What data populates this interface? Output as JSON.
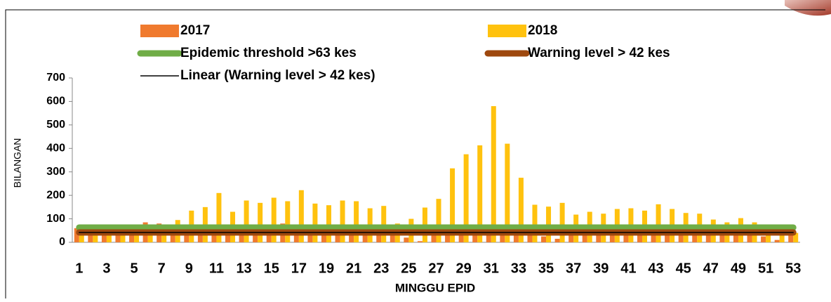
{
  "chart_data": {
    "type": "bar",
    "categories": [
      1,
      null,
      3,
      null,
      5,
      null,
      7,
      null,
      9,
      null,
      11,
      null,
      13,
      null,
      15,
      null,
      17,
      null,
      19,
      null,
      21,
      null,
      23,
      null,
      25,
      null,
      27,
      null,
      29,
      null,
      31,
      null,
      33,
      null,
      35,
      null,
      37,
      null,
      39,
      null,
      41,
      null,
      43,
      null,
      45,
      null,
      47,
      null,
      49,
      null,
      51,
      null,
      53
    ],
    "series": [
      {
        "name": "2017",
        "type": "bar",
        "color": "#f07a2e",
        "values": [
          60,
          75,
          55,
          50,
          55,
          85,
          80,
          60,
          55,
          55,
          55,
          50,
          55,
          55,
          60,
          80,
          55,
          55,
          50,
          50,
          55,
          50,
          50,
          40,
          20,
          5,
          45,
          50,
          55,
          55,
          55,
          55,
          50,
          45,
          25,
          15,
          45,
          50,
          50,
          50,
          50,
          50,
          50,
          50,
          50,
          50,
          50,
          45,
          45,
          40,
          25,
          10,
          45
        ]
      },
      {
        "name": "2018",
        "type": "bar",
        "color": "#ffc20e",
        "values": [
          70,
          75,
          60,
          55,
          55,
          70,
          75,
          95,
          135,
          150,
          210,
          130,
          178,
          168,
          190,
          175,
          222,
          165,
          158,
          178,
          175,
          145,
          155,
          80,
          100,
          148,
          185,
          315,
          375,
          413,
          580,
          420,
          275,
          160,
          152,
          168,
          118,
          130,
          122,
          142,
          145,
          135,
          162,
          142,
          125,
          122,
          97,
          85,
          103,
          85,
          50,
          30,
          40
        ]
      },
      {
        "name": "Epidemic threshold >63 kes",
        "type": "line",
        "color": "#70ad47",
        "values": [
          63,
          63,
          63,
          63,
          63,
          63,
          63,
          63,
          63,
          63,
          63,
          63,
          63,
          63,
          63,
          63,
          63,
          63,
          63,
          63,
          63,
          63,
          63,
          63,
          63,
          63,
          63,
          63,
          63,
          63,
          63,
          63,
          63,
          63,
          63,
          63,
          63,
          63,
          63,
          63,
          63,
          63,
          63,
          63,
          63,
          63,
          63,
          63,
          63,
          63,
          63,
          63,
          63
        ]
      },
      {
        "name": "Warning level > 42 kes",
        "type": "line",
        "color": "#9e480e",
        "values": [
          42,
          42,
          42,
          42,
          42,
          42,
          42,
          42,
          42,
          42,
          42,
          42,
          42,
          42,
          42,
          42,
          42,
          42,
          42,
          42,
          42,
          42,
          42,
          42,
          42,
          42,
          42,
          42,
          42,
          42,
          42,
          42,
          42,
          42,
          42,
          42,
          42,
          42,
          42,
          42,
          42,
          42,
          42,
          42,
          42,
          42,
          42,
          42,
          42,
          42,
          42,
          42,
          42
        ]
      },
      {
        "name": "Linear (Warning level > 42 kes)",
        "type": "trend",
        "color": "#000000",
        "values": [
          42,
          42,
          42,
          42,
          42,
          42,
          42,
          42,
          42,
          42,
          42,
          42,
          42,
          42,
          42,
          42,
          42,
          42,
          42,
          42,
          42,
          42,
          42,
          42,
          42,
          42,
          42,
          42,
          42,
          42,
          42,
          42,
          42,
          42,
          42,
          42,
          42,
          42,
          42,
          42,
          42,
          42,
          42,
          42,
          42,
          42,
          42,
          42,
          42,
          42,
          42,
          42,
          42
        ]
      }
    ],
    "xlabel": "MINGGU EPID",
    "ylabel": "BILANGAN",
    "ylim": [
      0,
      700
    ],
    "yticks": [
      0,
      100,
      200,
      300,
      400,
      500,
      600,
      700
    ]
  }
}
